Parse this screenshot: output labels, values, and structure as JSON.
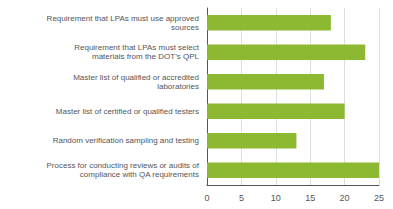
{
  "chart_data": {
    "type": "bar",
    "orientation": "horizontal",
    "categories": [
      "Process for conducting reviews or audits of\ncompliance with QA requirements",
      "Random verification sampling and testing",
      "Master list of certified or qualified testers",
      "Master list of qualified or accredited\nlaboratories",
      "Requirement that LPAs must select\nmaterials from the DOT’s QPL",
      "Requirement that LPAs must use approved\nsources"
    ],
    "values": [
      25,
      13,
      20,
      17,
      23,
      18
    ],
    "color": "#8db832",
    "xlim": [
      0,
      25
    ],
    "xticks": [
      0,
      5,
      10,
      15,
      20,
      25
    ],
    "grid": true
  }
}
